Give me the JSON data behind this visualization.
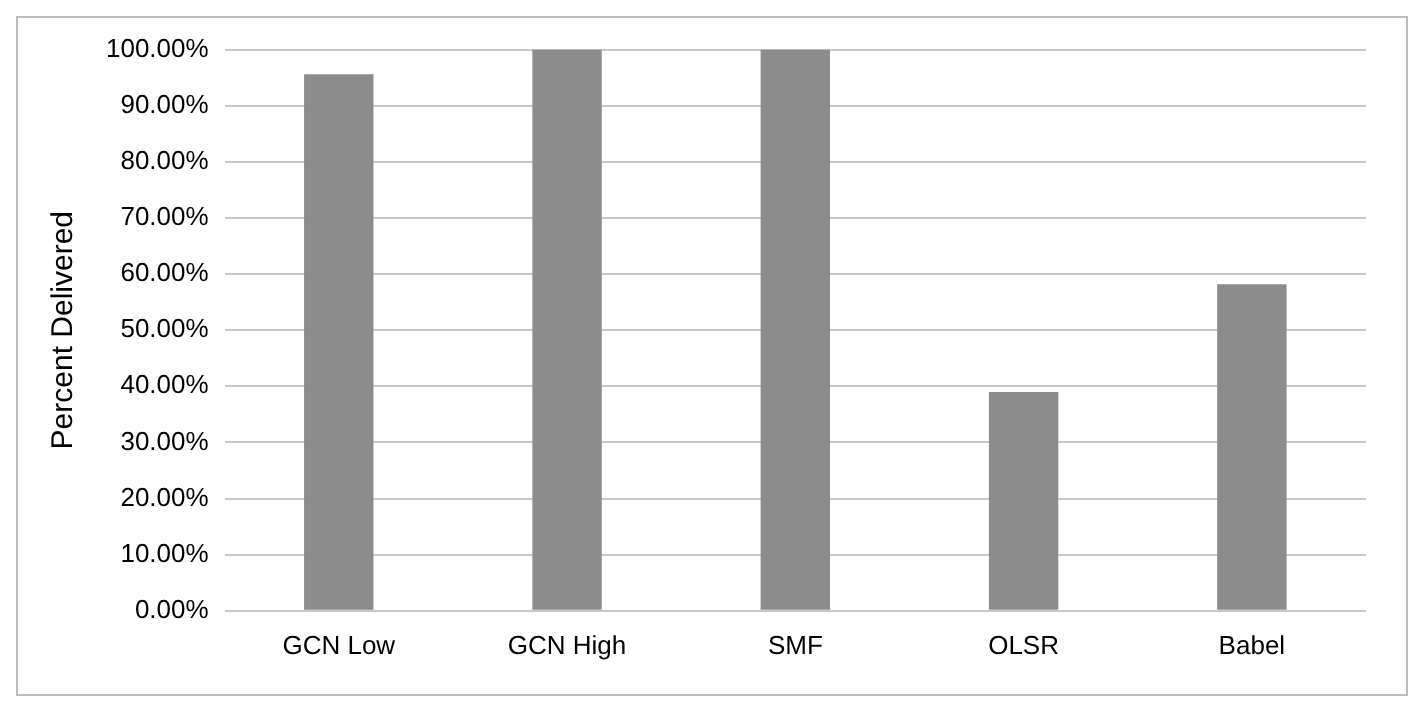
{
  "chart_data": {
    "type": "bar",
    "ylabel": "Percent Delivered",
    "categories": [
      "GCN Low",
      "GCN High",
      "SMF",
      "OLSR",
      "Babel"
    ],
    "values": [
      95.6,
      100,
      100,
      39,
      58.2
    ],
    "color": "#8c8c8c",
    "ylim": [
      0,
      100
    ],
    "yticks": [
      {
        "value": 0,
        "label": "0.00%"
      },
      {
        "value": 10,
        "label": "10.00%"
      },
      {
        "value": 20,
        "label": "20.00%"
      },
      {
        "value": 30,
        "label": "30.00%"
      },
      {
        "value": 40,
        "label": "40.00%"
      },
      {
        "value": 50,
        "label": "50.00%"
      },
      {
        "value": 60,
        "label": "60.00%"
      },
      {
        "value": 70,
        "label": "70.00%"
      },
      {
        "value": 80,
        "label": "80.00%"
      },
      {
        "value": 90,
        "label": "90.00%"
      },
      {
        "value": 100,
        "label": "100.00%"
      }
    ],
    "grid": "y"
  }
}
